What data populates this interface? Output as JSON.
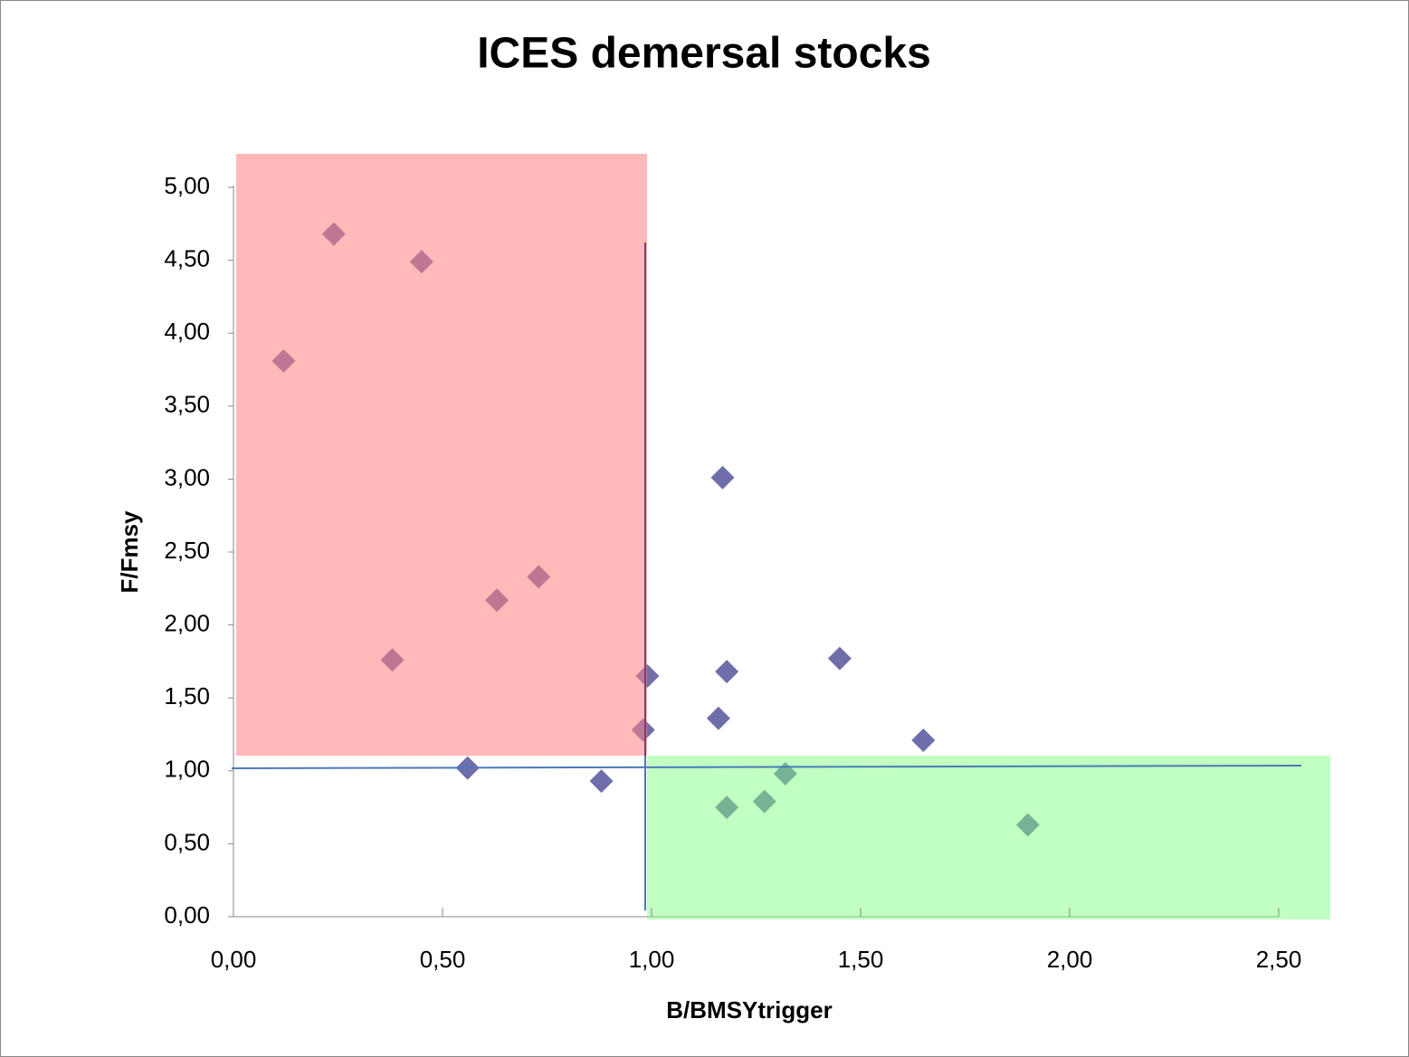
{
  "chart_data": {
    "type": "scatter",
    "title": "ICES demersal stocks",
    "x_label": "B/BMSYtrigger",
    "y_label": "F/Fmsy",
    "color": "#6e6eaa",
    "x": [
      0.12,
      0.24,
      0.45,
      0.38,
      0.63,
      0.73,
      0.56,
      0.88,
      0.99,
      0.98,
      1.17,
      1.18,
      1.16,
      1.45,
      1.65,
      1.32,
      1.18,
      1.27,
      1.9
    ],
    "values": [
      3.81,
      4.68,
      4.49,
      1.76,
      2.17,
      2.33,
      1.02,
      0.93,
      1.65,
      1.28,
      3.01,
      1.68,
      1.36,
      1.77,
      1.21,
      0.98,
      0.75,
      0.79,
      0.63
    ],
    "xlim": [
      0,
      2.5
    ],
    "ylim": [
      0,
      5
    ],
    "xticks": [
      {
        "value": 0,
        "label": "0,00"
      },
      {
        "value": 0.5,
        "label": "0,50"
      },
      {
        "value": 1,
        "label": "1,00"
      },
      {
        "value": 1.5,
        "label": "1,50"
      },
      {
        "value": 2,
        "label": "2,00"
      },
      {
        "value": 2.5,
        "label": "2,50"
      }
    ],
    "yticks": [
      {
        "value": 0,
        "label": "0,00"
      },
      {
        "value": 0.5,
        "label": "0,50"
      },
      {
        "value": 1,
        "label": "1,00"
      },
      {
        "value": 1.5,
        "label": "1,50"
      },
      {
        "value": 2,
        "label": "2,00"
      },
      {
        "value": 2.5,
        "label": "2,50"
      },
      {
        "value": 3,
        "label": "3,00"
      },
      {
        "value": 3.5,
        "label": "3,50"
      },
      {
        "value": 4,
        "label": "4,00"
      },
      {
        "value": 4.5,
        "label": "4,50"
      },
      {
        "value": 5,
        "label": "5,00"
      }
    ]
  }
}
